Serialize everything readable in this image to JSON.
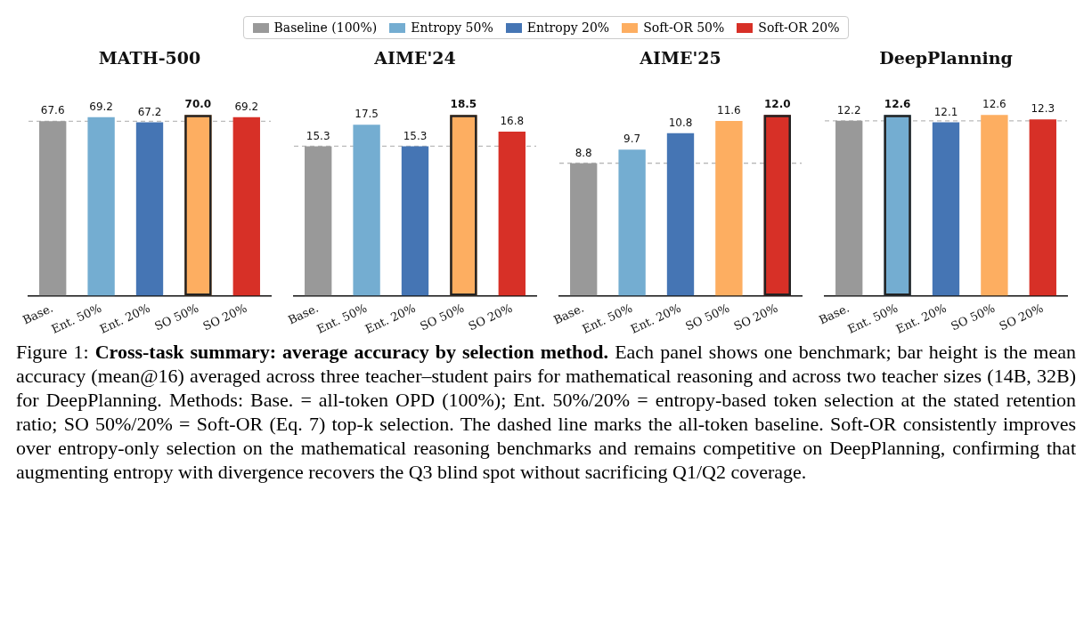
{
  "chart_data": [
    {
      "type": "bar",
      "title": "MATH-500",
      "stacked": true,
      "legend": "top",
      "grid": false,
      "categories": [
        "Base.",
        "Ent. 50%",
        "Ent. 20%",
        "SO 50%",
        "SO 20%"
      ],
      "series": [
        {
          "name": "Baseline (100%)",
          "color": "#999999",
          "values": [
            67.6,
            null,
            null,
            null,
            null
          ],
          "value_labels": [
            "67.6",
            null,
            null,
            null,
            null
          ]
        },
        {
          "name": "Entropy 50%",
          "color": "#74add1",
          "values": [
            null,
            69.2,
            null,
            null,
            null
          ],
          "value_labels": [
            null,
            "69.2",
            null,
            null,
            null
          ]
        },
        {
          "name": "Entropy 20%",
          "color": "#4575b4",
          "values": [
            null,
            null,
            67.2,
            null,
            null
          ],
          "value_labels": [
            null,
            null,
            "67.2",
            null,
            null
          ]
        },
        {
          "name": "Soft-OR 50%",
          "color": "#fdae61",
          "values": [
            null,
            null,
            null,
            70.0,
            null
          ],
          "value_labels": [
            null,
            null,
            null,
            "70.0",
            null
          ]
        },
        {
          "name": "Soft-OR 20%",
          "color": "#d73027",
          "values": [
            null,
            null,
            null,
            null,
            69.2
          ],
          "value_labels": [
            null,
            null,
            null,
            null,
            "69.2"
          ]
        }
      ],
      "ref_lines": [
        {
          "axis": "y",
          "value": 67.6,
          "color": "#bbbbbb",
          "line_style": "dashed"
        }
      ],
      "annotations": [
        "Figure 1: ",
        "Cross-task summary: average accuracy by selection method.",
        " Each panel shows one benchmark; bar height is the mean accuracy (mean@16) averaged across three teacher–student pairs for mathematical reasoning and across two teacher sizes (14B, 32B) for DeepPlanning. Methods: Base. = all-token OPD (100%); Ent. 50%/20% = entropy-based token selection at the stated retention ratio; SO 50%/20% = Soft-OR (Eq. 7) top-k selection. The dashed line marks the all-token baseline. Soft-OR consistently improves over entropy-only selection on the mathematical reasoning benchmarks and remains competitive on DeepPlanning, confirming that augmenting entropy with divergence recovers the Q3 blind spot without sacrificing Q1/Q2 coverage."
      ]
    },
    {
      "type": "bar",
      "title": "AIME'24",
      "stacked": true,
      "categories": [
        "Base.",
        "Ent. 50%",
        "Ent. 20%",
        "SO 50%",
        "SO 20%"
      ],
      "series": [
        {
          "color": "#999999",
          "values": [
            15.3,
            null,
            null,
            null,
            null
          ],
          "value_labels": [
            "15.3",
            null,
            null,
            null,
            null
          ]
        },
        {
          "color": "#74add1",
          "values": [
            null,
            17.5,
            null,
            null,
            null
          ],
          "value_labels": [
            null,
            "17.5",
            null,
            null,
            null
          ]
        },
        {
          "color": "#4575b4",
          "values": [
            null,
            null,
            15.3,
            null,
            null
          ],
          "value_labels": [
            null,
            null,
            "15.3",
            null,
            null
          ]
        },
        {
          "color": "#fdae61",
          "values": [
            null,
            null,
            null,
            18.5,
            null
          ],
          "value_labels": [
            null,
            null,
            null,
            "18.5",
            null
          ]
        },
        {
          "color": "#d73027",
          "values": [
            null,
            null,
            null,
            null,
            16.8
          ],
          "value_labels": [
            null,
            null,
            null,
            null,
            "16.8"
          ]
        }
      ],
      "ref_lines": [
        {
          "axis": "y",
          "value": 15.3,
          "color": "#bbbbbb",
          "line_style": "dashed"
        }
      ]
    },
    {
      "type": "bar",
      "title": "AIME'25",
      "stacked": true,
      "categories": [
        "Base.",
        "Ent. 50%",
        "Ent. 20%",
        "SO 50%",
        "SO 20%"
      ],
      "series": [
        {
          "color": "#999999",
          "values": [
            8.8,
            null,
            null,
            null,
            null
          ],
          "value_labels": [
            "8.8",
            null,
            null,
            null,
            null
          ]
        },
        {
          "color": "#74add1",
          "values": [
            null,
            9.7,
            null,
            null,
            null
          ],
          "value_labels": [
            null,
            "9.7",
            null,
            null,
            null
          ]
        },
        {
          "color": "#4575b4",
          "values": [
            null,
            null,
            10.8,
            null,
            null
          ],
          "value_labels": [
            null,
            null,
            "10.8",
            null,
            null
          ]
        },
        {
          "color": "#fdae61",
          "values": [
            null,
            null,
            null,
            11.6,
            null
          ],
          "value_labels": [
            null,
            null,
            null,
            "11.6",
            null
          ]
        },
        {
          "color": "#d73027",
          "values": [
            null,
            null,
            null,
            null,
            12.0
          ],
          "value_labels": [
            null,
            null,
            null,
            null,
            "12.0"
          ]
        }
      ],
      "ref_lines": [
        {
          "axis": "y",
          "value": 8.8,
          "color": "#bbbbbb",
          "line_style": "dashed"
        }
      ]
    },
    {
      "type": "bar",
      "title": "DeepPlanning",
      "stacked": true,
      "categories": [
        "Base.",
        "Ent. 50%",
        "Ent. 20%",
        "SO 50%",
        "SO 20%"
      ],
      "series": [
        {
          "color": "#999999",
          "values": [
            12.2,
            null,
            null,
            null,
            null
          ],
          "value_labels": [
            "12.2",
            null,
            null,
            null,
            null
          ]
        },
        {
          "color": "#74add1",
          "values": [
            null,
            12.6,
            null,
            null,
            null
          ],
          "value_labels": [
            null,
            "12.6",
            null,
            null,
            null
          ]
        },
        {
          "color": "#4575b4",
          "values": [
            null,
            null,
            12.1,
            null,
            null
          ],
          "value_labels": [
            null,
            null,
            "12.1",
            null,
            null
          ]
        },
        {
          "color": "#fdae61",
          "values": [
            null,
            null,
            null,
            12.6,
            null
          ],
          "value_labels": [
            null,
            null,
            null,
            "12.6",
            null
          ]
        },
        {
          "color": "#d73027",
          "values": [
            null,
            null,
            null,
            null,
            12.3
          ],
          "value_labels": [
            null,
            null,
            null,
            null,
            "12.3"
          ]
        }
      ],
      "ref_lines": [
        {
          "axis": "y",
          "value": 12.2,
          "color": "#bbbbbb",
          "line_style": "dashed"
        }
      ]
    }
  ]
}
